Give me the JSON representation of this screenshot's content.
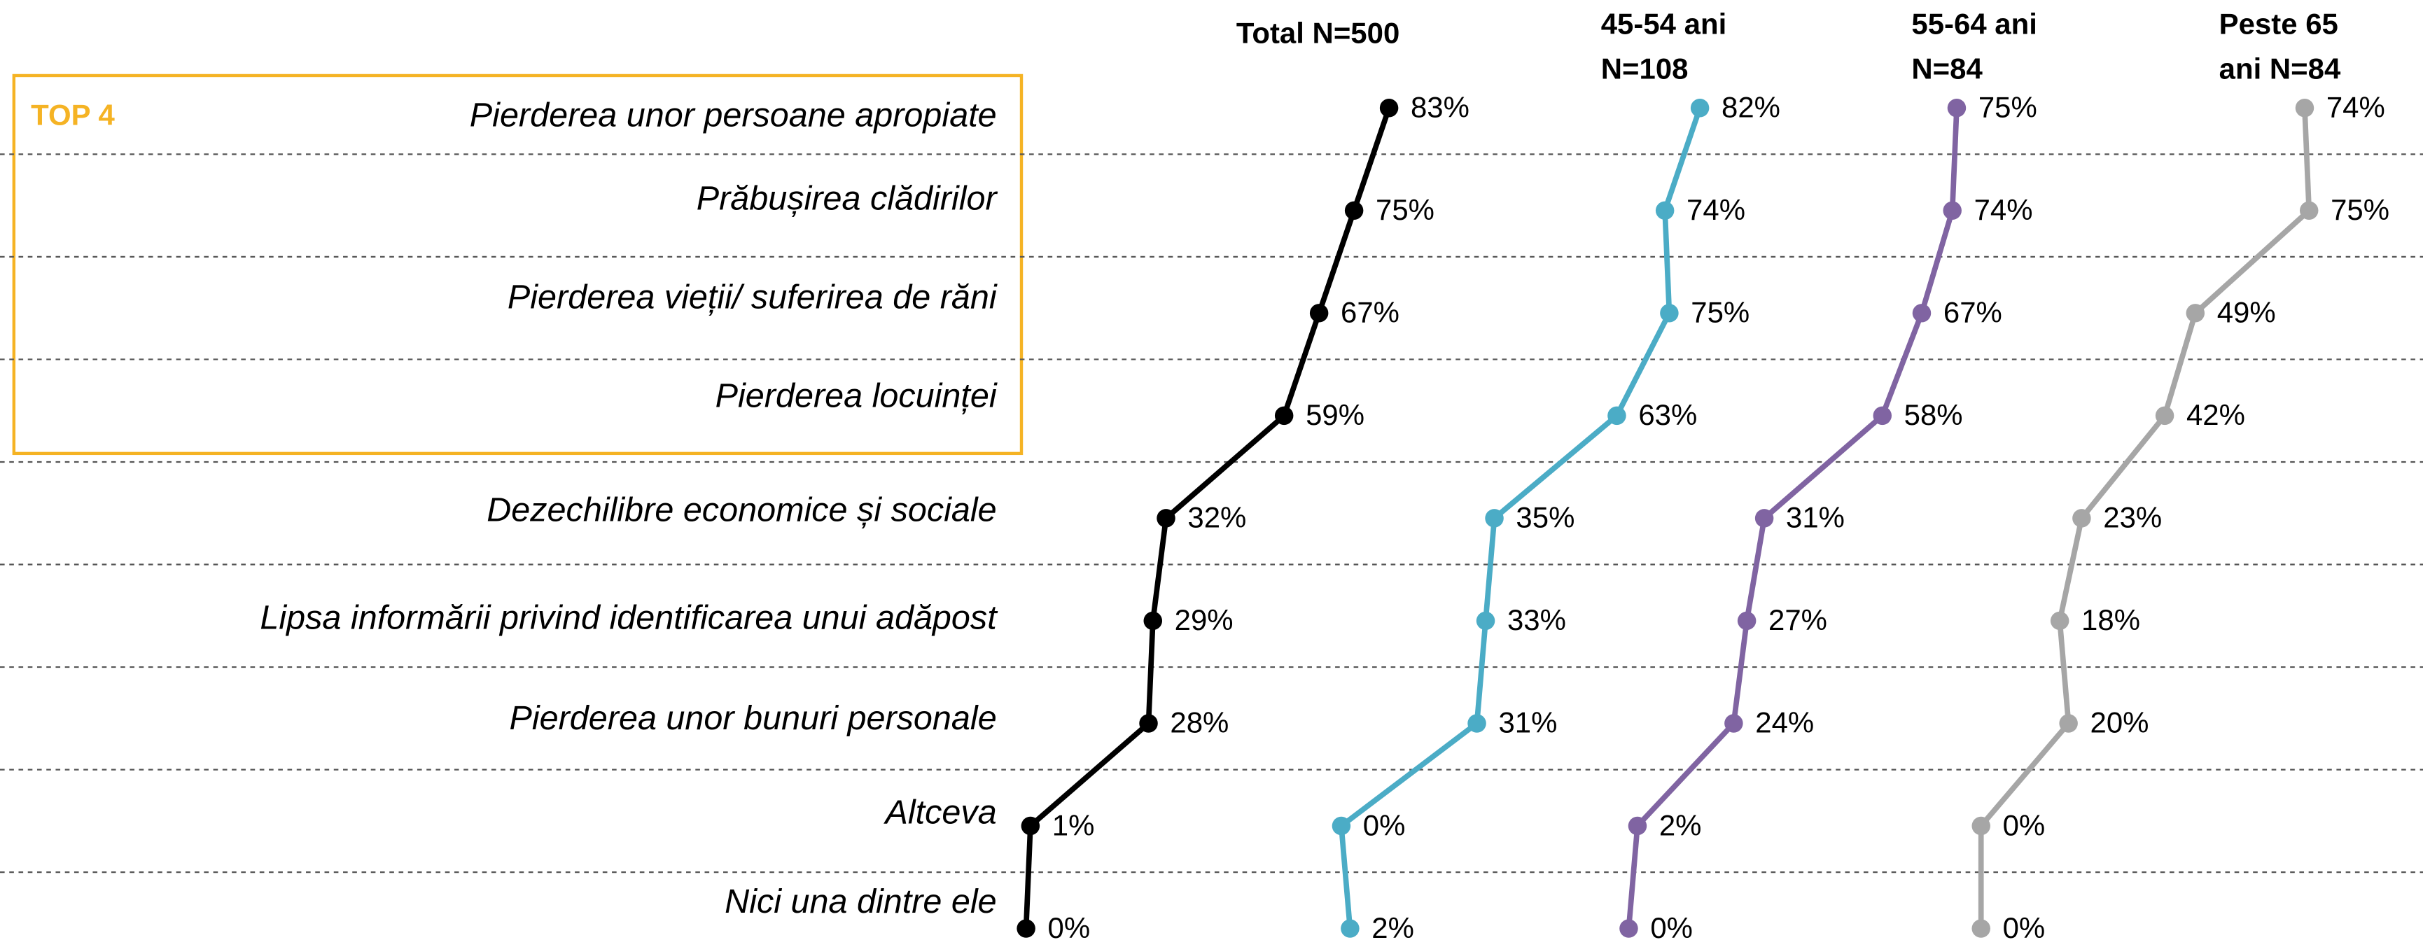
{
  "chart_data": {
    "type": "line",
    "annotation": "TOP 4",
    "categories": [
      "Pierderea unor persoane apropiate",
      "Prăbușirea clădirilor",
      "Pierderea vieții/ suferirea de răni",
      "Pierderea locuinței",
      "Dezechilibre economice și sociale",
      "Lipsa informării privind identificarea unui adăpost",
      "Pierderea unor bunuri personale",
      "Altceva",
      "Nici una dintre ele"
    ],
    "xlim": [
      0,
      100
    ],
    "series": [
      {
        "name": "Total N=500",
        "color": "#000000",
        "values": [
          83,
          75,
          67,
          59,
          32,
          29,
          28,
          1,
          0
        ],
        "value_labels": [
          "83%",
          "75%",
          "67%",
          "59%",
          "32%",
          "29%",
          "28%",
          "1%",
          "0%"
        ]
      },
      {
        "name": "45-54 ani\nN=108",
        "color": "#4bacc6",
        "values": [
          82,
          74,
          75,
          63,
          35,
          33,
          31,
          0,
          2
        ],
        "value_labels": [
          "82%",
          "74%",
          "75%",
          "63%",
          "35%",
          "33%",
          "31%",
          "0%",
          "2%"
        ]
      },
      {
        "name": "55-64 ani\nN=84",
        "color": "#8064a2",
        "values": [
          75,
          74,
          67,
          58,
          31,
          27,
          24,
          2,
          0
        ],
        "value_labels": [
          "75%",
          "74%",
          "67%",
          "58%",
          "31%",
          "27%",
          "24%",
          "2%",
          "0%"
        ]
      },
      {
        "name": "Peste 65\nani N=84",
        "color": "#a6a6a6",
        "values": [
          74,
          75,
          49,
          42,
          23,
          18,
          20,
          0,
          0
        ],
        "value_labels": [
          "74%",
          "75%",
          "49%",
          "42%",
          "23%",
          "18%",
          "20%",
          "0%",
          "0%"
        ]
      }
    ]
  }
}
